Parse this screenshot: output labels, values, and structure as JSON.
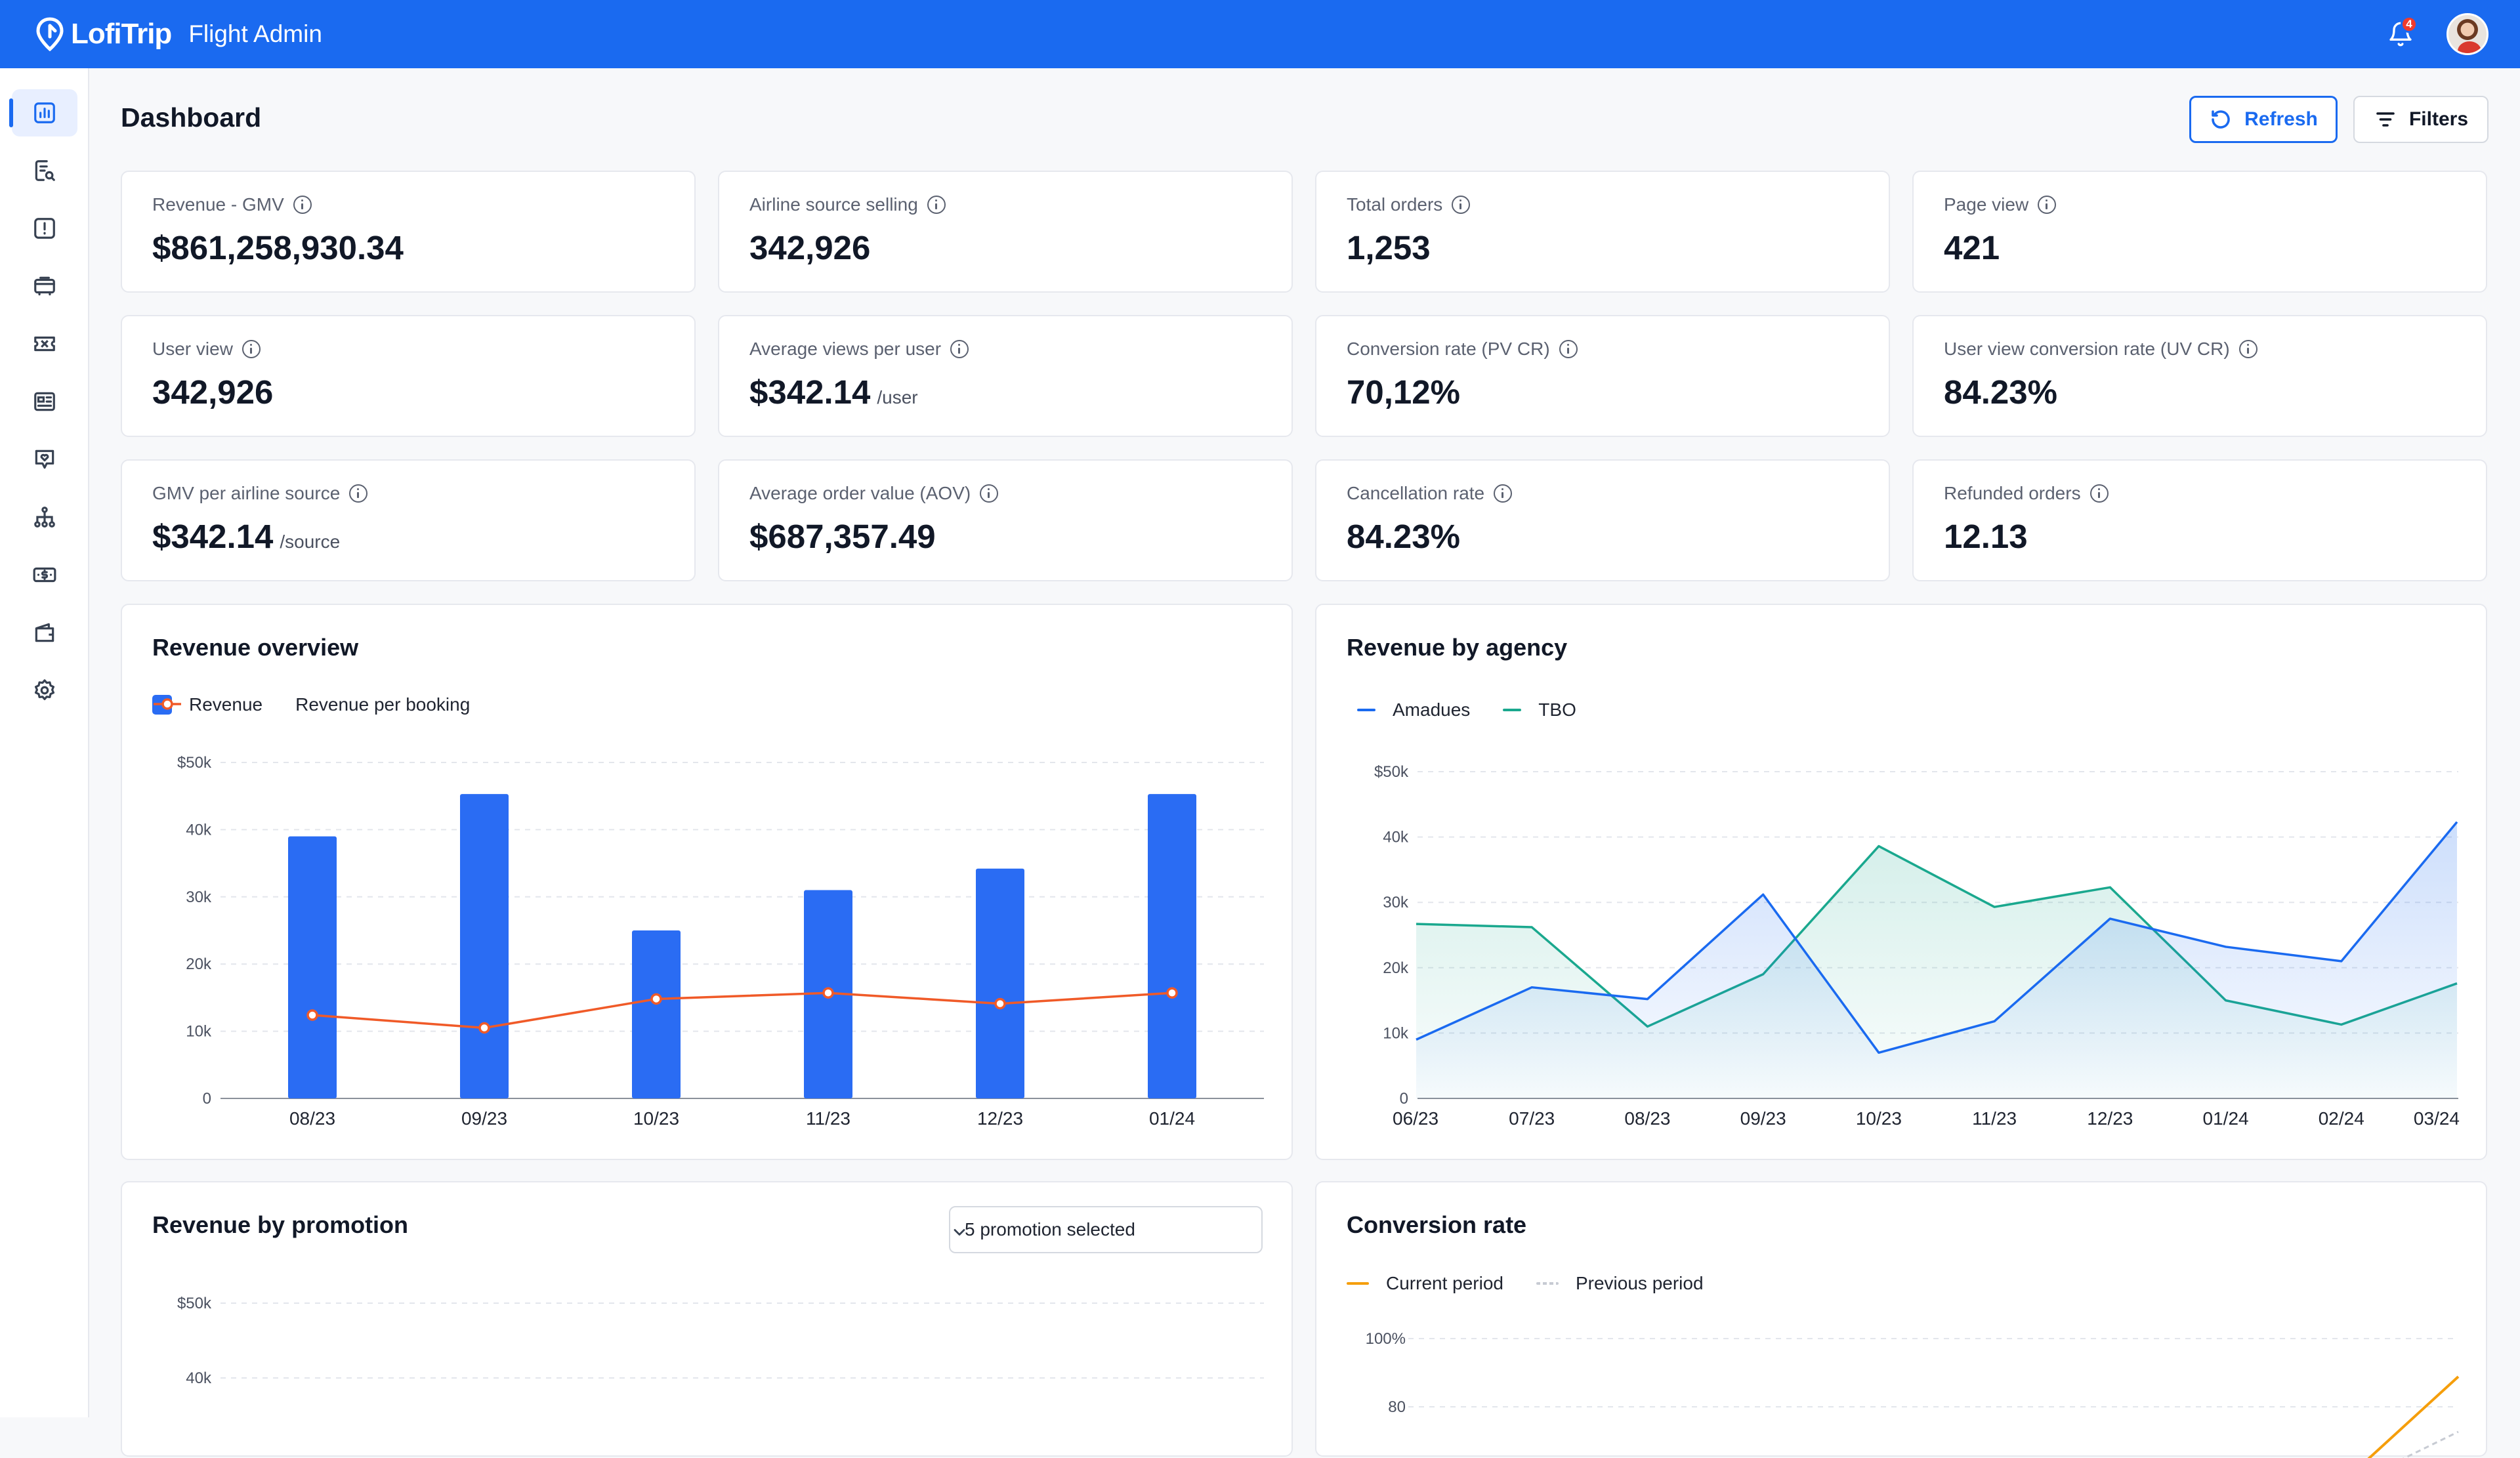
{
  "app": {
    "logo_text": "LofiTrip",
    "title": "Flight Admin",
    "notification_count": "4"
  },
  "sidebar": {
    "items": [
      {
        "icon": "chart-icon",
        "active": true
      },
      {
        "icon": "search-report-icon"
      },
      {
        "icon": "alert-icon"
      },
      {
        "icon": "flight-icon"
      },
      {
        "icon": "ticket-icon"
      },
      {
        "icon": "news-icon"
      },
      {
        "icon": "support-icon"
      },
      {
        "icon": "network-icon"
      },
      {
        "icon": "money-icon"
      },
      {
        "icon": "wallet-icon"
      },
      {
        "icon": "settings-icon"
      }
    ]
  },
  "header": {
    "title": "Dashboard",
    "refresh_label": "Refresh",
    "filters_label": "Filters"
  },
  "kpis": [
    {
      "label": "Revenue - GMV",
      "value": "$861,258,930.34",
      "unit": ""
    },
    {
      "label": "Airline source selling",
      "value": "342,926",
      "unit": ""
    },
    {
      "label": "Total orders",
      "value": "1,253",
      "unit": ""
    },
    {
      "label": "Page view",
      "value": "421",
      "unit": ""
    },
    {
      "label": "User view",
      "value": "342,926",
      "unit": ""
    },
    {
      "label": "Average views per user",
      "value": "$342.14",
      "unit": "/user"
    },
    {
      "label": "Conversion rate (PV CR)",
      "value": "70,12%",
      "unit": ""
    },
    {
      "label": "User view conversion rate (UV CR)",
      "value": "84.23%",
      "unit": ""
    },
    {
      "label": "GMV per airline source",
      "value": "$342.14",
      "unit": "/source"
    },
    {
      "label": "Average order value (AOV)",
      "value": "$687,357.49",
      "unit": ""
    },
    {
      "label": "Cancellation rate",
      "value": "84.23%",
      "unit": ""
    },
    {
      "label": "Refunded orders",
      "value": "12.13",
      "unit": ""
    }
  ],
  "revenue_overview": {
    "title": "Revenue overview",
    "legend_revenue": "Revenue",
    "legend_per_booking": "Revenue per booking"
  },
  "revenue_by_agency": {
    "title": "Revenue by agency",
    "legend_a": "Amadues",
    "legend_b": "TBO"
  },
  "revenue_by_promotion": {
    "title": "Revenue by promotion",
    "select_value": "5 promotion selected"
  },
  "conversion_rate": {
    "title": "Conversion rate",
    "legend_current": "Current period",
    "legend_previous": "Previous period"
  },
  "colors": {
    "primary": "#1a6af0",
    "bar": "#2a6cf3",
    "orange": "#f05a28",
    "teal": "#1aa88e",
    "amber": "#f59e0b"
  },
  "chart_data": [
    {
      "type": "bar",
      "title": "Revenue overview",
      "categories": [
        "08/23",
        "09/23",
        "10/23",
        "11/23",
        "12/23",
        "01/24"
      ],
      "series": [
        {
          "name": "Revenue",
          "type": "bar",
          "values": [
            39000,
            45300,
            25000,
            31000,
            34200,
            45300
          ]
        },
        {
          "name": "Revenue per booking",
          "type": "line",
          "values": [
            12400,
            10500,
            14800,
            15700,
            14100,
            15700
          ]
        }
      ],
      "ylim": [
        0,
        50000
      ],
      "yticks": [
        "0",
        "10k",
        "20k",
        "30k",
        "40k",
        "$50k"
      ],
      "grid": true,
      "legend": "top-left"
    },
    {
      "type": "area",
      "title": "Revenue by agency",
      "categories": [
        "06/23",
        "07/23",
        "08/23",
        "09/23",
        "10/23",
        "11/23",
        "12/23",
        "01/24",
        "02/24",
        "03/24"
      ],
      "series": [
        {
          "name": "Amadues",
          "values": [
            9000,
            17000,
            15200,
            31200,
            7000,
            11800,
            27500,
            23200,
            21000,
            42300
          ]
        },
        {
          "name": "TBO",
          "values": [
            26700,
            26200,
            11000,
            19000,
            38600,
            29300,
            32300,
            15000,
            11300,
            17600
          ]
        }
      ],
      "ylim": [
        0,
        50000
      ],
      "yticks": [
        "0",
        "10k",
        "20k",
        "30k",
        "40k",
        "$50k"
      ],
      "grid": true,
      "legend": "top-left"
    },
    {
      "type": "bar",
      "title": "Revenue by promotion",
      "yticks": [
        "40k",
        "$50k"
      ],
      "ylim": [
        0,
        50000
      ]
    },
    {
      "type": "line",
      "title": "Conversion rate",
      "series": [
        {
          "name": "Current period",
          "values": []
        },
        {
          "name": "Previous period",
          "values": []
        }
      ],
      "yticks": [
        "80",
        "100%"
      ],
      "ylim": [
        0,
        100
      ]
    }
  ]
}
